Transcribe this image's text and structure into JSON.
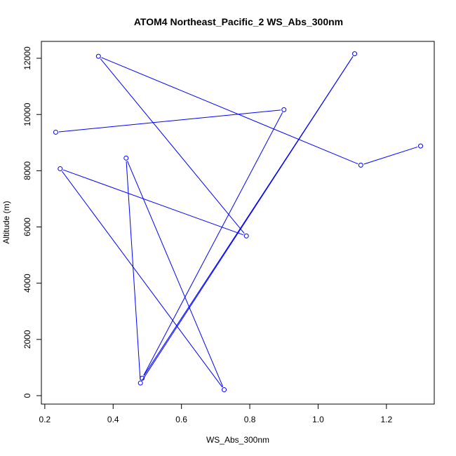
{
  "chart_data": {
    "type": "line",
    "title": "ATOM4 Northeast_Pacific_2 WS_Abs_300nm",
    "xlabel": "WS_Abs_300nm",
    "ylabel": "Altitude (m)",
    "xlim": [
      0.19,
      1.34
    ],
    "ylim": [
      -300,
      12600
    ],
    "xticks": [
      0.2,
      0.4,
      0.6,
      0.8,
      1.0,
      1.2
    ],
    "xtick_labels": [
      "0.2",
      "0.4",
      "0.6",
      "0.8",
      "1.0",
      "1.2"
    ],
    "yticks": [
      0,
      2000,
      4000,
      6000,
      8000,
      10000,
      12000
    ],
    "ytick_labels": [
      "0",
      "2000",
      "4000",
      "6000",
      "8000",
      "10000",
      "12000"
    ],
    "grid": false,
    "series_color": "#0000ff",
    "series": [
      {
        "x": [
          1.3,
          1.125,
          0.357,
          0.79,
          0.245,
          0.725,
          0.438,
          0.48,
          1.107,
          0.485,
          0.9,
          0.232
        ],
        "y": [
          8880,
          8200,
          12070,
          5680,
          8070,
          210,
          8450,
          450,
          12160,
          620,
          10170,
          9370
        ]
      }
    ]
  }
}
